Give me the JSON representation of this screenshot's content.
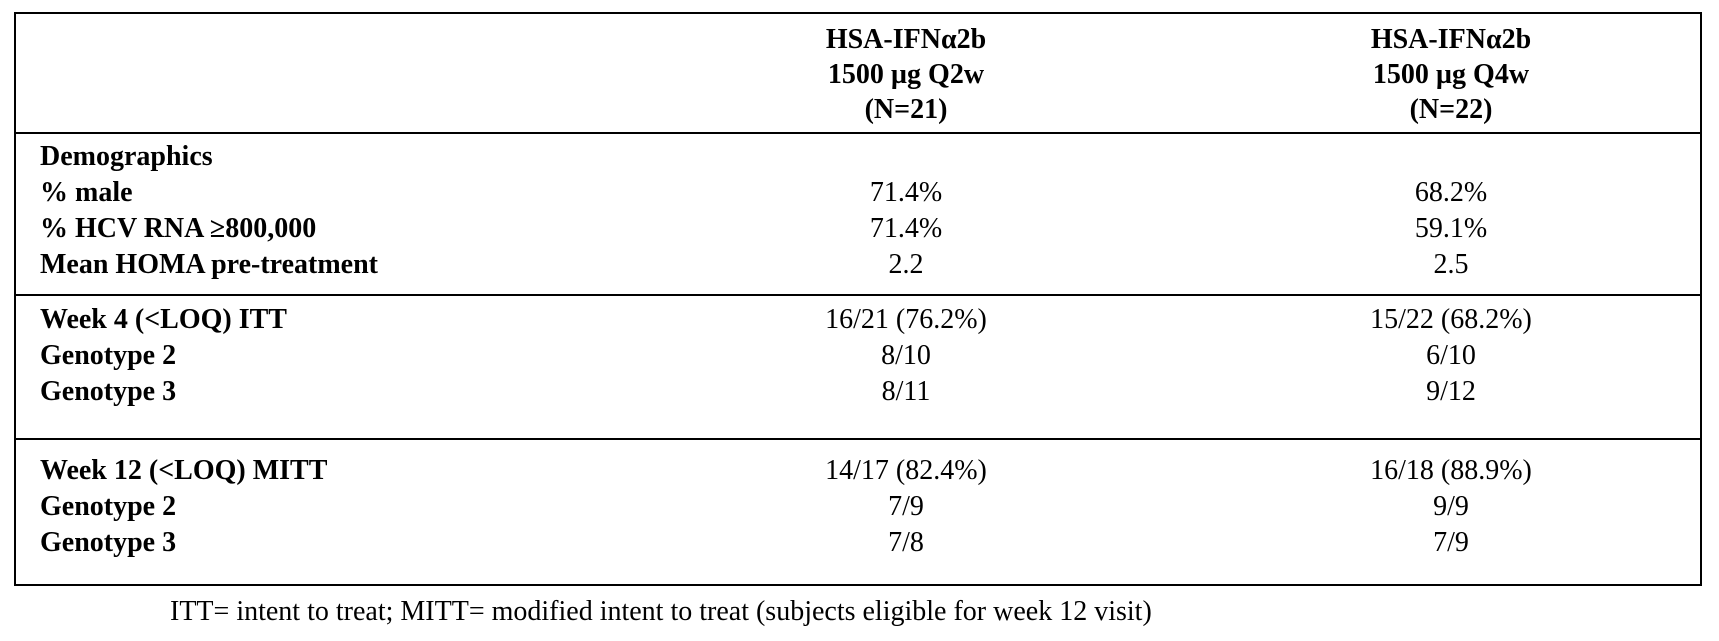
{
  "header": {
    "col1": [
      "HSA-IFNα2b",
      "1500 µg Q2w",
      "(N=21)"
    ],
    "col2": [
      "HSA-IFNα2b",
      "1500 µg Q4w",
      "(N=22)"
    ]
  },
  "sections": [
    {
      "rows": [
        {
          "label": "Demographics",
          "v1": "",
          "v2": ""
        },
        {
          "label": "% male",
          "v1": "71.4%",
          "v2": "68.2%"
        },
        {
          "label": "% HCV RNA ≥800,000",
          "v1": "71.4%",
          "v2": "59.1%"
        },
        {
          "label": "Mean HOMA pre-treatment",
          "v1": "2.2",
          "v2": "2.5"
        }
      ]
    },
    {
      "rows": [
        {
          "label": "Week 4 (<LOQ) ITT",
          "v1": "16/21 (76.2%)",
          "v2": "15/22 (68.2%)"
        },
        {
          "label": "Genotype 2",
          "v1": "8/10",
          "v2": "6/10"
        },
        {
          "label": "Genotype 3",
          "v1": "8/11",
          "v2": "9/12"
        }
      ]
    },
    {
      "rows": [
        {
          "label": "Week 12 (<LOQ) MITT",
          "v1": "14/17 (82.4%)",
          "v2": "16/18 (88.9%)"
        },
        {
          "label": "Genotype 2",
          "v1": "7/9",
          "v2": "9/9"
        },
        {
          "label": "Genotype 3",
          "v1": "7/8",
          "v2": "7/9"
        }
      ]
    }
  ],
  "footnote": "ITT= intent to treat; MITT= modified intent to treat (subjects eligible for week 12 visit)"
}
